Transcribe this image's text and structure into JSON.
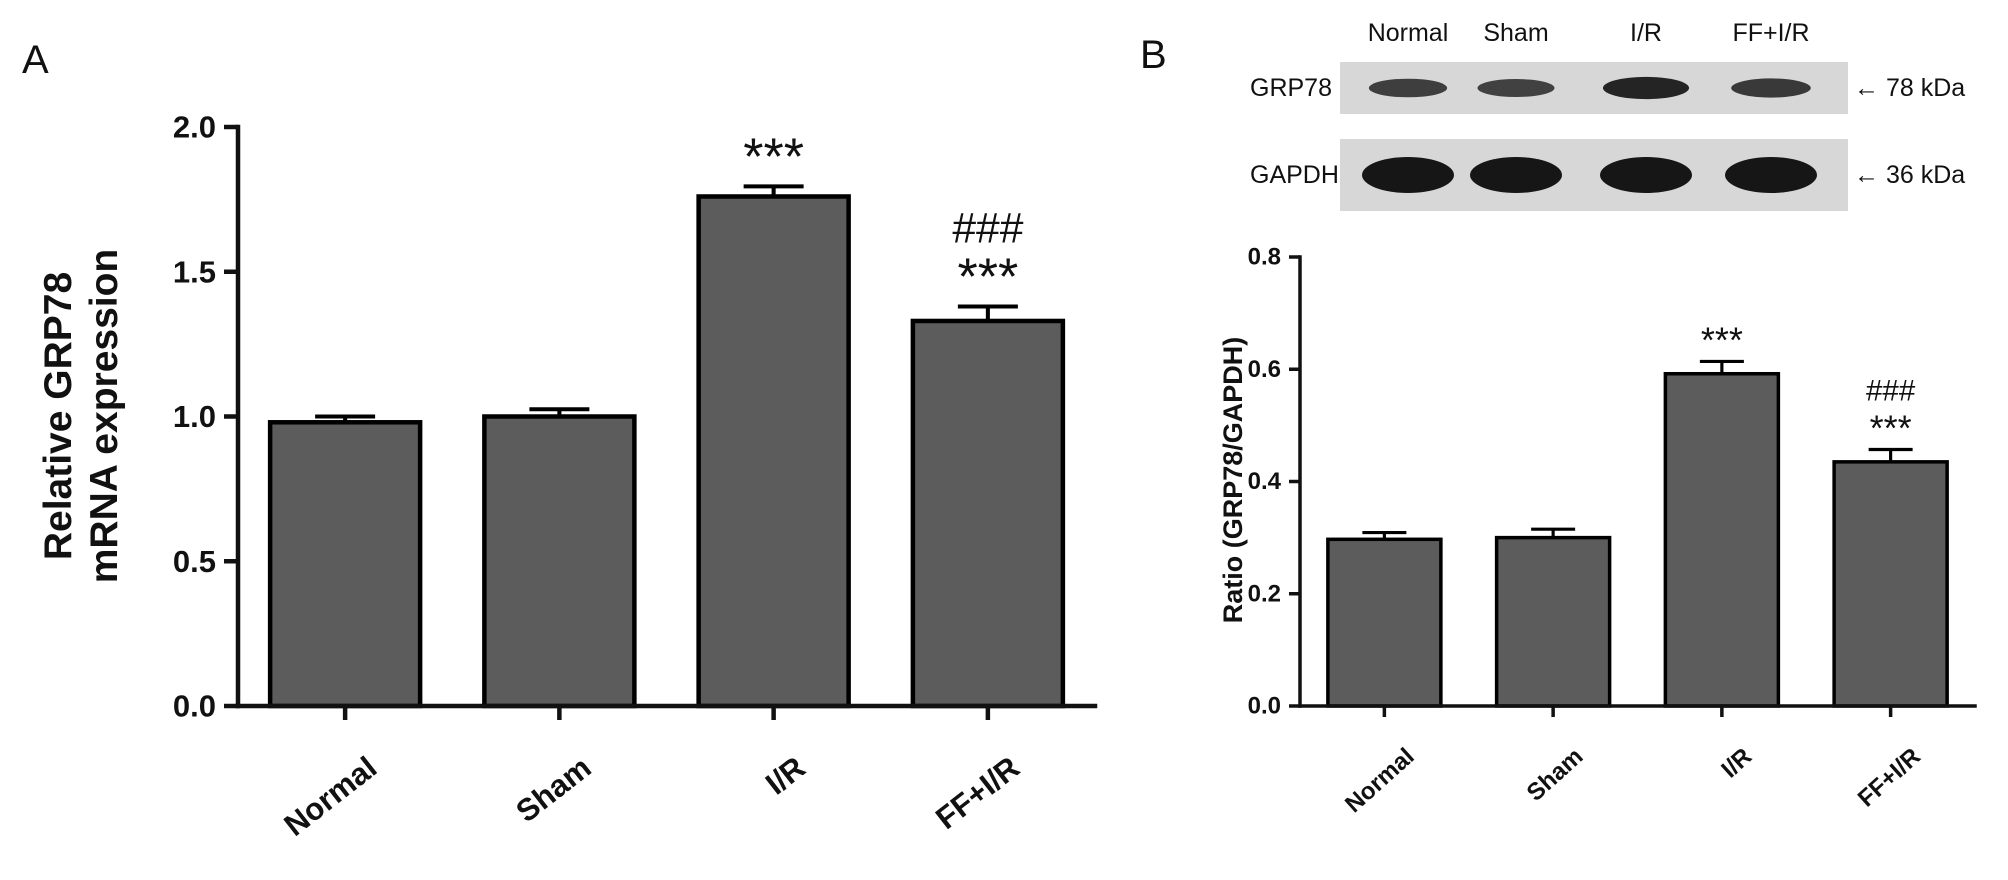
{
  "colors": {
    "bar_fill": "#5c5c5c",
    "bar_stroke": "#000000",
    "axis": "#111111",
    "blot_background": "#d7d7d7",
    "blot_band": "#161616"
  },
  "blot": {
    "lane_labels": [
      "Normal",
      "Sham",
      "I/R",
      "FF+I/R"
    ],
    "rows": [
      {
        "protein": "GRP78",
        "marker": "← 78 kDa",
        "intensities": [
          0.55,
          0.5,
          0.85,
          0.6
        ]
      },
      {
        "protein": "GAPDH",
        "marker": "← 36 kDa",
        "intensities": [
          1.0,
          1.0,
          1.0,
          1.0
        ]
      }
    ]
  },
  "chart_data": [
    {
      "panel": "A",
      "type": "bar",
      "categories": [
        "Normal",
        "Sham",
        "I/R",
        "FF+I/R"
      ],
      "values": [
        0.98,
        1.0,
        1.76,
        1.33
      ],
      "errors": [
        0.02,
        0.025,
        0.035,
        0.05
      ],
      "annotations": [
        [],
        [],
        [
          "***"
        ],
        [
          "###",
          "***"
        ]
      ],
      "xlabel": "",
      "ylabel": [
        "Relative GRP78",
        "mRNA expression"
      ],
      "ylim": [
        0.0,
        2.0
      ],
      "yticks": [
        "0.0",
        "0.5",
        "1.0",
        "1.5",
        "2.0"
      ],
      "ytick_values": [
        0.0,
        0.5,
        1.0,
        1.5,
        2.0
      ],
      "grid": false
    },
    {
      "panel": "B",
      "type": "bar",
      "categories": [
        "Normal",
        "Sham",
        "I/R",
        "FF+I/R"
      ],
      "values": [
        0.297,
        0.3,
        0.592,
        0.435
      ],
      "errors": [
        0.012,
        0.015,
        0.022,
        0.022
      ],
      "annotations": [
        [],
        [],
        [
          "***"
        ],
        [
          "###",
          "***"
        ]
      ],
      "xlabel": "",
      "ylabel": [
        "Ratio (GRP78/GAPDH)"
      ],
      "ylim": [
        0.0,
        0.8
      ],
      "yticks": [
        "0.0",
        "0.2",
        "0.4",
        "0.6",
        "0.8"
      ],
      "ytick_values": [
        0.0,
        0.2,
        0.4,
        0.6,
        0.8
      ],
      "grid": false
    }
  ]
}
